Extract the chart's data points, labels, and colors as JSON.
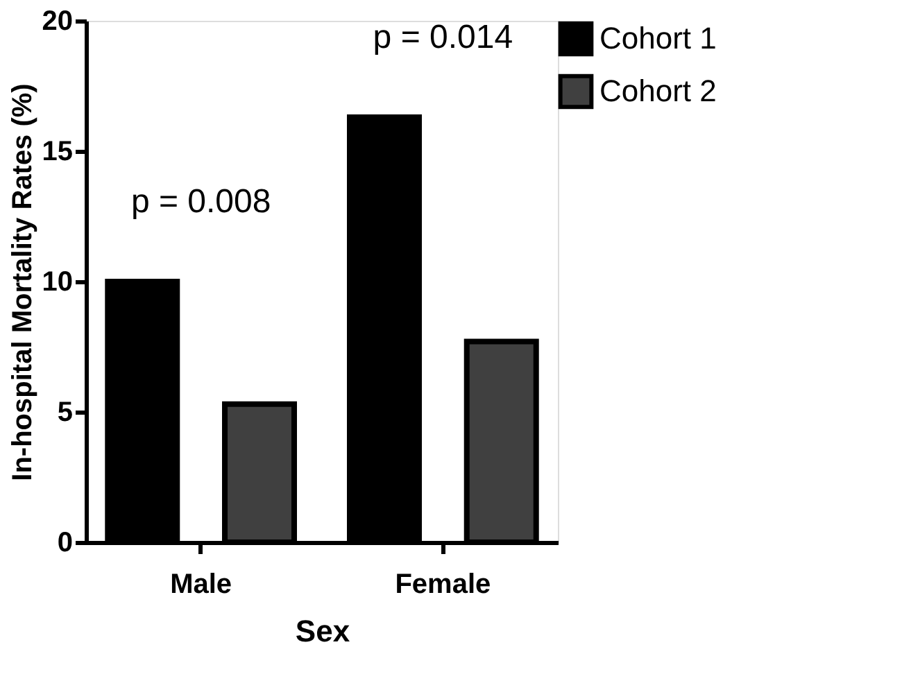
{
  "chart_data": {
    "type": "bar",
    "xlabel": "Sex",
    "ylabel": "In-hospital Mortality Rates (%)",
    "categories": [
      "Male",
      "Female"
    ],
    "series": [
      {
        "name": "Cohort 1",
        "color": "#000000",
        "values": [
          10.0,
          16.3
        ]
      },
      {
        "name": "Cohort 2",
        "color": "#404040",
        "values": [
          5.3,
          7.7
        ]
      }
    ],
    "ylim": [
      0,
      20
    ],
    "yticks": [
      0,
      5,
      10,
      15,
      20
    ],
    "grid": false,
    "legend": "top right",
    "annotations": [
      "p = 0.008",
      "p = 0.014"
    ]
  }
}
